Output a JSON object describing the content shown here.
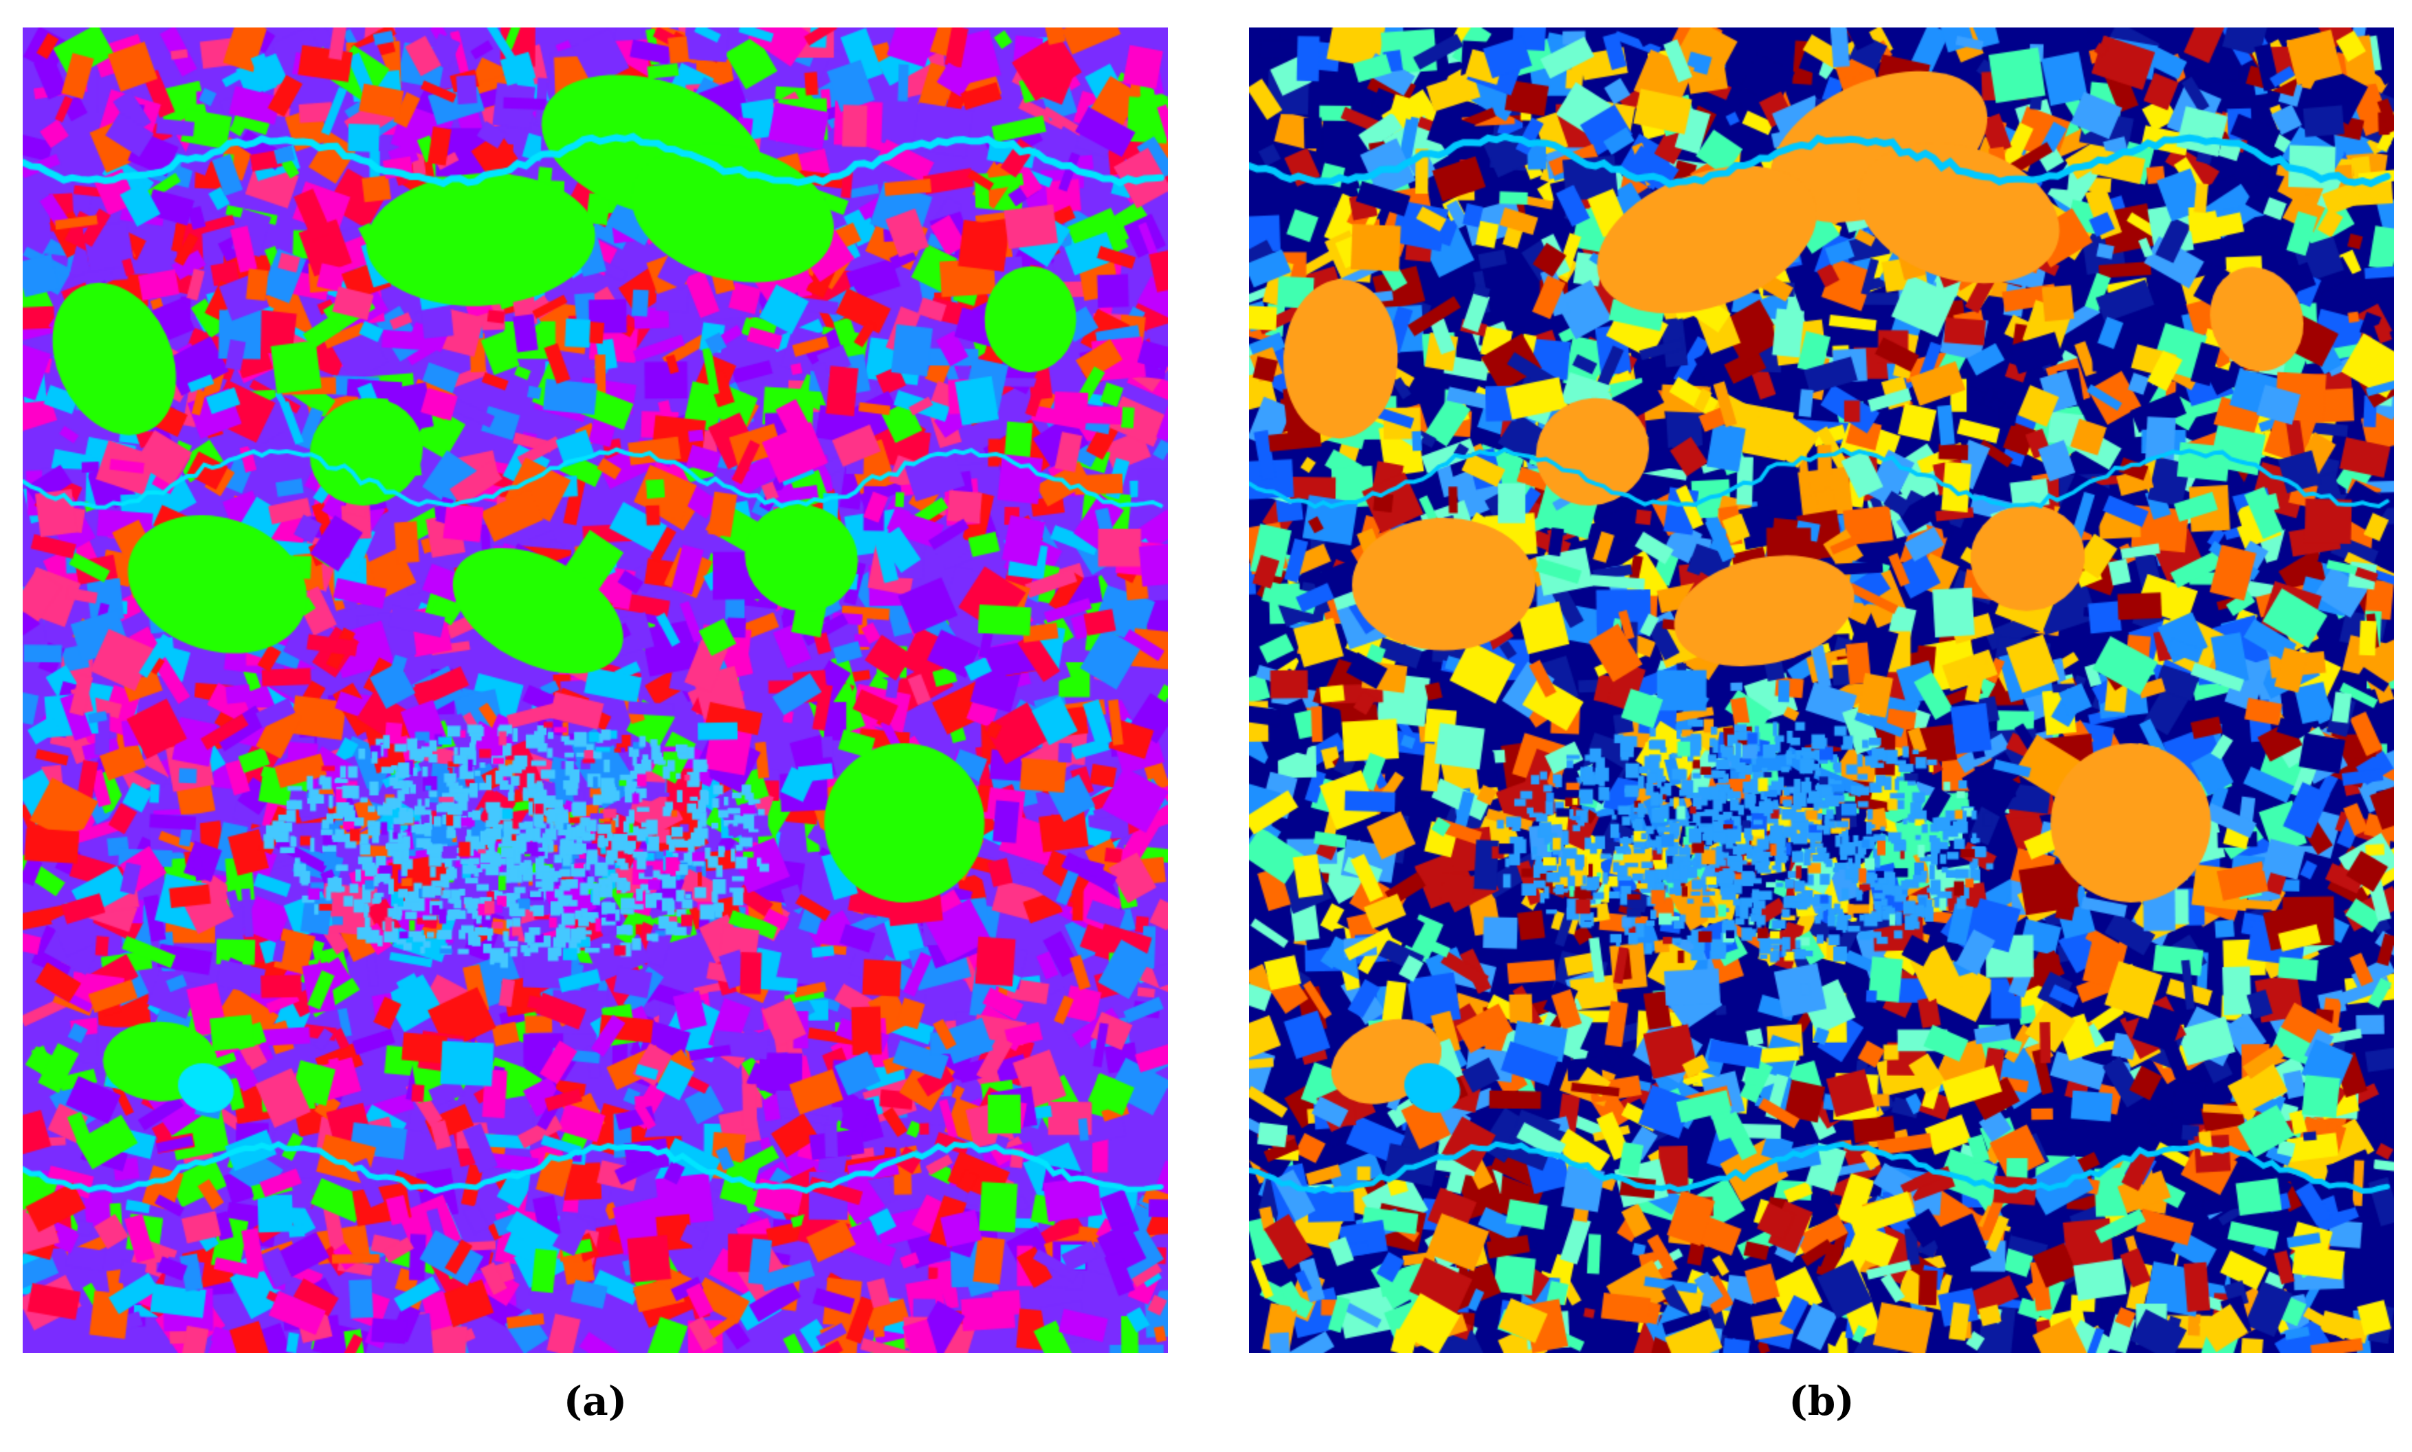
{
  "figure": {
    "panels": [
      {
        "id": "a",
        "caption": "(a)",
        "kind": "classified satellite map",
        "palette": [
          "#7a2cff",
          "#8a00ff",
          "#ff0040",
          "#ff1010",
          "#ff00c8",
          "#c000ff",
          "#22ff00",
          "#ff5a00",
          "#1e90ff",
          "#00c8ff",
          "#ff3388"
        ],
        "water_color": "#00e5ff",
        "urban_color": "#44c8ff",
        "field_color": "#22ff00"
      },
      {
        "id": "b",
        "caption": "(b)",
        "kind": "classified satellite map",
        "palette": [
          "#00008b",
          "#0a1aa0",
          "#1e90ff",
          "#3aa0ff",
          "#ff9f00",
          "#ffd000",
          "#fff000",
          "#a00000",
          "#c01010",
          "#40ffb0",
          "#70ffd0",
          "#ff6a00",
          "#1060ff"
        ],
        "water_color": "#00c8ff",
        "urban_color": "#2aa0ff",
        "field_color": "#ff9f1a"
      }
    ]
  }
}
